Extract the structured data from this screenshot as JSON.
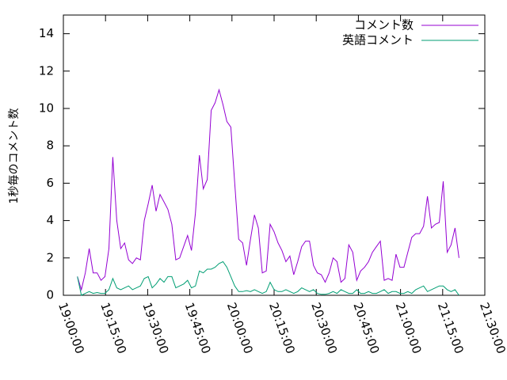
{
  "chart_data": {
    "type": "line",
    "y_label": "1秒毎のコメント数",
    "x": [
      "19:05:00",
      "19:06:24",
      "19:07:48",
      "19:09:12",
      "19:10:36",
      "19:12:00",
      "19:13:24",
      "19:14:48",
      "19:16:12",
      "19:17:36",
      "19:19:00",
      "19:20:24",
      "19:21:48",
      "19:23:12",
      "19:24:36",
      "19:26:00",
      "19:27:24",
      "19:28:48",
      "19:30:12",
      "19:31:36",
      "19:33:00",
      "19:34:24",
      "19:35:48",
      "19:37:12",
      "19:38:36",
      "19:40:00",
      "19:41:24",
      "19:42:48",
      "19:44:12",
      "19:45:36",
      "19:47:00",
      "19:48:24",
      "19:49:48",
      "19:51:12",
      "19:52:36",
      "19:54:00",
      "19:55:24",
      "19:56:48",
      "19:58:12",
      "19:59:36",
      "20:01:00",
      "20:02:24",
      "20:03:48",
      "20:05:12",
      "20:06:36",
      "20:08:00",
      "20:09:24",
      "20:10:48",
      "20:12:12",
      "20:13:36",
      "20:15:00",
      "20:16:24",
      "20:17:48",
      "20:19:12",
      "20:20:36",
      "20:22:00",
      "20:23:24",
      "20:24:48",
      "20:26:12",
      "20:27:36",
      "20:29:00",
      "20:30:24",
      "20:31:48",
      "20:33:12",
      "20:34:36",
      "20:36:00",
      "20:37:24",
      "20:38:48",
      "20:40:12",
      "20:41:36",
      "20:43:00",
      "20:44:24",
      "20:45:48",
      "20:47:12",
      "20:48:36",
      "20:50:00",
      "20:51:24",
      "20:52:48",
      "20:54:12",
      "20:55:36",
      "20:57:00",
      "20:58:24",
      "20:59:48",
      "21:01:12",
      "21:02:36",
      "21:04:00",
      "21:05:24",
      "21:06:48",
      "21:08:12",
      "21:09:36",
      "21:11:00",
      "21:12:24",
      "21:13:48",
      "21:15:12",
      "21:16:36",
      "21:18:00",
      "21:19:24",
      "21:20:48"
    ],
    "series": [
      {
        "name": "コメント数",
        "color": "#9400d3",
        "values": [
          1.0,
          0.3,
          1.2,
          2.5,
          1.2,
          1.2,
          0.8,
          1.0,
          2.5,
          7.4,
          4.0,
          2.5,
          2.8,
          1.9,
          1.7,
          2.0,
          1.9,
          4.0,
          4.9,
          5.9,
          4.5,
          5.4,
          5.0,
          4.6,
          3.8,
          1.9,
          2.0,
          2.6,
          3.2,
          2.4,
          4.4,
          7.5,
          5.7,
          6.2,
          9.9,
          10.3,
          11.0,
          10.2,
          9.3,
          9.0,
          6.0,
          3.0,
          2.8,
          1.6,
          3.0,
          4.3,
          3.6,
          1.2,
          1.3,
          3.8,
          3.4,
          2.8,
          2.4,
          1.8,
          2.1,
          1.1,
          1.8,
          2.6,
          2.9,
          2.9,
          1.6,
          1.2,
          1.1,
          0.7,
          1.2,
          2.0,
          1.8,
          0.7,
          0.9,
          2.7,
          2.3,
          0.8,
          1.3,
          1.5,
          1.8,
          2.3,
          2.6,
          2.9,
          0.8,
          0.9,
          0.8,
          2.2,
          1.5,
          1.5,
          2.3,
          3.1,
          3.3,
          3.3,
          3.7,
          5.3,
          3.6,
          3.8,
          3.9,
          6.1,
          2.3,
          2.7,
          3.6,
          2.0
        ]
      },
      {
        "name": "英語コメント",
        "color": "#009e73",
        "values": [
          1.0,
          0.0,
          0.1,
          0.2,
          0.1,
          0.15,
          0.1,
          0.1,
          0.3,
          0.9,
          0.4,
          0.3,
          0.4,
          0.5,
          0.3,
          0.4,
          0.5,
          0.9,
          1.0,
          0.4,
          0.6,
          0.9,
          0.7,
          1.0,
          1.0,
          0.4,
          0.5,
          0.6,
          0.8,
          0.4,
          0.5,
          1.3,
          1.2,
          1.4,
          1.4,
          1.5,
          1.7,
          1.8,
          1.5,
          1.0,
          0.5,
          0.2,
          0.2,
          0.25,
          0.2,
          0.3,
          0.2,
          0.1,
          0.2,
          0.7,
          0.3,
          0.2,
          0.2,
          0.3,
          0.2,
          0.1,
          0.2,
          0.4,
          0.3,
          0.2,
          0.3,
          0.1,
          0.05,
          0.05,
          0.1,
          0.2,
          0.1,
          0.3,
          0.2,
          0.1,
          0.1,
          0.3,
          0.1,
          0.1,
          0.2,
          0.1,
          0.1,
          0.2,
          0.3,
          0.1,
          0.2,
          0.2,
          0.1,
          0.1,
          0.2,
          0.1,
          0.3,
          0.4,
          0.5,
          0.2,
          0.3,
          0.4,
          0.5,
          0.5,
          0.3,
          0.2,
          0.3,
          0.0
        ]
      }
    ],
    "xlim": [
      "19:00:00",
      "21:30:00"
    ],
    "xticks": [
      "19:00:00",
      "19:15:00",
      "19:30:00",
      "19:45:00",
      "20:00:00",
      "20:15:00",
      "20:30:00",
      "20:45:00",
      "21:00:00",
      "21:15:00",
      "21:30:00"
    ],
    "ylim": [
      0,
      15
    ],
    "yticks": [
      0,
      2,
      4,
      6,
      8,
      10,
      12,
      14
    ],
    "legend": "top-right"
  }
}
